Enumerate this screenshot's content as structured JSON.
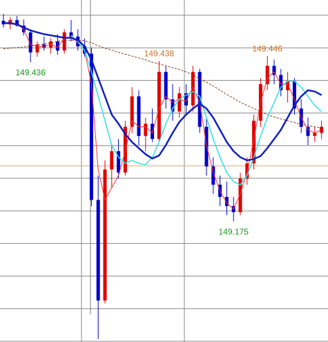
{
  "chart_data": {
    "type": "candlestick",
    "ylim": [
      148.977,
      149.538
    ],
    "up_color": "#e00000",
    "down_color": "#0000cc",
    "candles": {
      "open": [
        149.504,
        149.498,
        149.505,
        149.496,
        149.485,
        149.452,
        149.465,
        149.46,
        149.47,
        149.455,
        149.485,
        149.478,
        149.462,
        149.45,
        149.21,
        149.045,
        149.26,
        149.29,
        149.255,
        149.33,
        149.38,
        149.315,
        149.335,
        149.31,
        149.42,
        149.375,
        149.355,
        149.385,
        149.365,
        149.42,
        149.33,
        149.265,
        149.235,
        149.215,
        149.2,
        149.19,
        149.245,
        149.27,
        149.34,
        149.4,
        149.43,
        149.415,
        149.39,
        149.405,
        149.36,
        149.33,
        149.315,
        149.32
      ],
      "high": [
        149.515,
        149.51,
        149.512,
        149.506,
        149.49,
        149.47,
        149.478,
        149.475,
        149.482,
        149.49,
        149.505,
        149.49,
        149.475,
        149.46,
        149.25,
        149.275,
        149.3,
        149.31,
        149.34,
        149.395,
        149.39,
        149.345,
        149.36,
        149.438,
        149.43,
        149.4,
        149.395,
        149.4,
        149.43,
        149.425,
        149.345,
        149.28,
        149.25,
        149.24,
        149.215,
        149.255,
        149.28,
        149.35,
        149.41,
        149.446,
        149.44,
        149.425,
        149.42,
        149.41,
        149.375,
        149.345,
        149.33,
        149.34
      ],
      "low": [
        149.493,
        149.49,
        149.494,
        149.48,
        149.436,
        149.445,
        149.455,
        149.45,
        149.448,
        149.45,
        149.47,
        149.455,
        149.445,
        149.2,
        148.982,
        149.04,
        149.23,
        149.245,
        149.25,
        149.32,
        149.3,
        149.29,
        149.305,
        149.305,
        149.36,
        149.34,
        149.345,
        149.35,
        149.355,
        149.32,
        149.25,
        149.22,
        149.2,
        149.185,
        149.175,
        149.185,
        149.235,
        149.26,
        149.33,
        149.39,
        149.4,
        149.38,
        149.37,
        149.35,
        149.32,
        149.3,
        149.305,
        149.31
      ],
      "close": [
        149.498,
        149.505,
        149.496,
        149.485,
        149.452,
        149.465,
        149.46,
        149.47,
        149.455,
        149.485,
        149.478,
        149.462,
        149.45,
        149.21,
        149.045,
        149.26,
        149.29,
        149.255,
        149.33,
        149.38,
        149.315,
        149.335,
        149.31,
        149.42,
        149.375,
        149.355,
        149.385,
        149.365,
        149.42,
        149.33,
        149.265,
        149.235,
        149.215,
        149.2,
        149.19,
        149.245,
        149.27,
        149.34,
        149.4,
        149.43,
        149.415,
        149.39,
        149.405,
        149.36,
        149.33,
        149.315,
        149.32,
        149.33
      ]
    },
    "series": [
      {
        "color": "#8b3a1a",
        "dash": true,
        "width": 1,
        "values": [
          149.458,
          149.459,
          149.46,
          149.461,
          149.462,
          149.464,
          149.466,
          149.468,
          149.47,
          149.472,
          149.472,
          149.472,
          149.471,
          149.468,
          149.463,
          149.459,
          149.456,
          149.452,
          149.449,
          149.446,
          149.443,
          149.44,
          149.436,
          149.433,
          149.43,
          149.427,
          149.424,
          149.42,
          149.415,
          149.409,
          149.403,
          149.397,
          149.39,
          149.383,
          149.377,
          149.37,
          149.365,
          149.36,
          149.355,
          149.35,
          149.346,
          149.343,
          149.34,
          149.337,
          149.334,
          149.332,
          149.33,
          149.328
        ]
      },
      {
        "color": "#ff3030",
        "dash": false,
        "width": 1,
        "values": [
          149.5,
          149.502,
          149.498,
          149.49,
          149.465,
          149.462,
          149.461,
          149.466,
          149.46,
          149.475,
          149.478,
          149.468,
          149.455,
          149.4,
          149.26,
          149.21,
          149.23,
          149.25,
          149.29,
          149.34,
          149.33,
          149.33,
          149.32,
          149.36,
          149.38,
          149.37,
          149.375,
          149.372,
          149.395,
          149.37,
          149.3,
          149.255,
          149.225,
          149.205,
          149.195,
          149.22,
          149.255,
          149.31,
          149.37,
          149.41,
          149.42,
          149.4,
          149.4,
          149.375,
          149.345,
          149.325,
          149.32,
          149.325
        ]
      },
      {
        "color": "#30e0e8",
        "dash": false,
        "width": 1.5,
        "values": [
          null,
          null,
          null,
          null,
          null,
          null,
          null,
          null,
          null,
          null,
          149.48,
          149.47,
          149.455,
          149.42,
          149.38,
          149.34,
          149.3,
          149.28,
          149.27,
          149.275,
          149.27,
          149.268,
          149.28,
          149.305,
          149.335,
          149.36,
          149.375,
          149.382,
          149.388,
          149.38,
          149.345,
          149.31,
          149.28,
          149.255,
          149.24,
          149.235,
          149.25,
          149.28,
          149.315,
          149.345,
          149.37,
          149.395,
          149.405,
          149.405,
          149.395,
          149.38,
          149.365,
          149.355
        ]
      },
      {
        "color": "#1020c0",
        "dash": false,
        "width": 2.5,
        "values": [
          149.5,
          149.5,
          149.498,
          149.493,
          149.488,
          149.485,
          149.482,
          149.48,
          149.478,
          149.476,
          149.476,
          149.472,
          149.462,
          149.44,
          149.41,
          149.38,
          149.35,
          149.335,
          149.318,
          149.305,
          149.295,
          149.285,
          149.278,
          149.283,
          149.3,
          149.32,
          149.338,
          149.35,
          149.36,
          149.368,
          149.36,
          149.345,
          149.325,
          149.305,
          149.29,
          149.28,
          149.275,
          149.277,
          149.282,
          149.295,
          149.31,
          149.325,
          149.345,
          149.365,
          149.38,
          149.39,
          149.388,
          149.382
        ]
      }
    ],
    "price_line": {
      "value": 149.266,
      "color": "#e8a060"
    },
    "annotations": [
      {
        "index": 4,
        "value": 149.436,
        "position": "below",
        "color": "#1a9a1a"
      },
      {
        "index": 23,
        "value": 149.438,
        "position": "above",
        "color": "#d07020"
      },
      {
        "index": 34,
        "value": 149.175,
        "position": "below",
        "color": "#1a9a1a"
      },
      {
        "index": 39,
        "value": 149.446,
        "position": "above",
        "color": "#d07020"
      }
    ]
  }
}
